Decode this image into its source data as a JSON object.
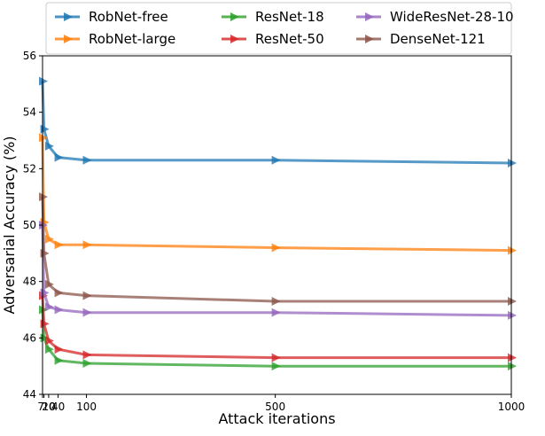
{
  "chart_data": {
    "type": "line",
    "xlabel": "Attack iterations",
    "ylabel": "Adversarial Accuracy (%)",
    "xlim": [
      7,
      1000
    ],
    "ylim": [
      44,
      56
    ],
    "x": [
      7,
      10,
      20,
      40,
      100,
      500,
      1000
    ],
    "x_tick_labels": [
      "7",
      "10",
      "20",
      "40",
      "100",
      "500",
      "1000"
    ],
    "y_ticks": [
      44,
      46,
      48,
      50,
      52,
      54,
      56
    ],
    "legend_position": "top",
    "legend_columns": 3,
    "grid": false,
    "series": [
      {
        "name": "RobNet-free",
        "color": "#1f77b4",
        "values": [
          55.1,
          53.4,
          52.8,
          52.4,
          52.3,
          52.3,
          52.2
        ]
      },
      {
        "name": "RobNet-large",
        "color": "#ff7f0e",
        "values": [
          53.1,
          50.1,
          49.5,
          49.3,
          49.3,
          49.2,
          49.1
        ]
      },
      {
        "name": "ResNet-18",
        "color": "#2ca02c",
        "values": [
          47.0,
          46.0,
          45.6,
          45.2,
          45.1,
          45.0,
          45.0
        ]
      },
      {
        "name": "ResNet-50",
        "color": "#d62728",
        "values": [
          47.5,
          46.5,
          45.9,
          45.6,
          45.4,
          45.3,
          45.3
        ]
      },
      {
        "name": "WideResNet-28-10",
        "color": "#9467bd",
        "values": [
          50.0,
          47.6,
          47.1,
          47.0,
          46.9,
          46.9,
          46.8
        ]
      },
      {
        "name": "DenseNet-121",
        "color": "#8c564b",
        "values": [
          51.0,
          49.0,
          47.9,
          47.6,
          47.5,
          47.3,
          47.3
        ]
      }
    ]
  }
}
